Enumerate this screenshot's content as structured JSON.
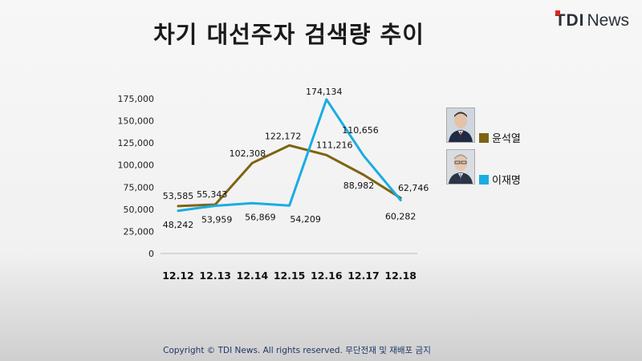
{
  "title": "차기 대선주자 검색량 추이",
  "brand": {
    "part1": "TDI",
    "part2": "News"
  },
  "footer": "Copyright © TDI News. All rights reserved. 무단전재 및 재배포 금지",
  "chart_data": {
    "type": "line",
    "categories": [
      "12.12",
      "12.13",
      "12.14",
      "12.15",
      "12.16",
      "12.17",
      "12.18"
    ],
    "yticks": [
      0,
      25000,
      50000,
      75000,
      100000,
      125000,
      150000,
      175000
    ],
    "ytick_labels": [
      "0",
      "25,000",
      "50,000",
      "75,000",
      "100,000",
      "125,000",
      "150,000",
      "175,000"
    ],
    "ylim": [
      0,
      175000
    ],
    "grid": false,
    "legend": "right",
    "series": [
      {
        "name": "윤석열",
        "color": "#7d6412",
        "values": [
          53585,
          55343,
          102308,
          122172,
          111216,
          88982,
          62746
        ],
        "labels": [
          "53,585",
          "55,343",
          "102,308",
          "122,172",
          "111,216",
          "88,982",
          "62,746"
        ]
      },
      {
        "name": "이재명",
        "color": "#1aace3",
        "values": [
          48242,
          53959,
          56869,
          54209,
          174134,
          110656,
          60282
        ],
        "labels": [
          "48,242",
          "53,959",
          "56,869",
          "54,209",
          "174,134",
          "110,656",
          "60,282"
        ]
      }
    ]
  }
}
